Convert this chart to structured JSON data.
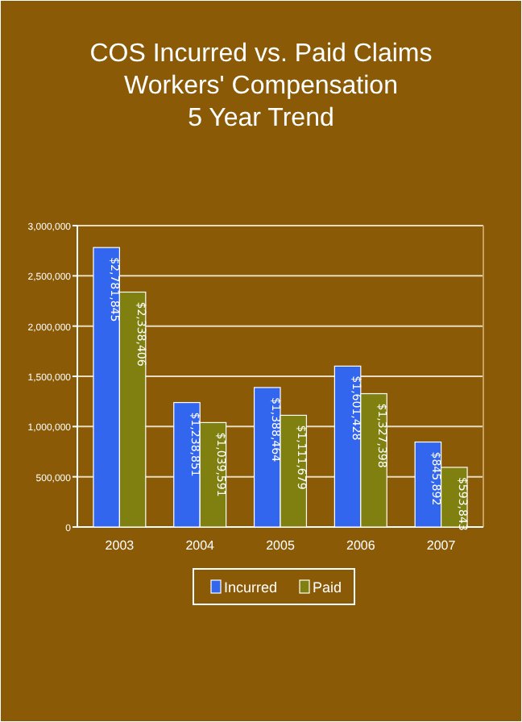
{
  "chart_data": {
    "type": "bar",
    "title": "COS Incurred vs. Paid Claims\nWorkers' Compensation\n5 Year Trend",
    "categories": [
      "2003",
      "2004",
      "2005",
      "2006",
      "2007"
    ],
    "series": [
      {
        "name": "Incurred",
        "color": "#3366ee",
        "values": [
          2781845,
          1238851,
          1388464,
          1601428,
          845892
        ],
        "value_labels": [
          "$2,781,845",
          "$1,238,851",
          "$1,388,464",
          "$1,601,428",
          "$845,892"
        ]
      },
      {
        "name": "Paid",
        "color": "#808010",
        "values": [
          2338406,
          1039591,
          1111679,
          1327398,
          593843
        ],
        "value_labels": [
          "$2,338,406",
          "$1,039,591",
          "$1,111,679",
          "$1,327,398",
          "$593,843"
        ]
      }
    ],
    "ylim": [
      0,
      3000000
    ],
    "yticks": [
      {
        "value": 0,
        "label": "0"
      },
      {
        "value": 500000,
        "label": "500,000"
      },
      {
        "value": 1000000,
        "label": "1,000,000"
      },
      {
        "value": 1500000,
        "label": "1,500,000"
      },
      {
        "value": 2000000,
        "label": "2,000,000"
      },
      {
        "value": 2500000,
        "label": "2,500,000"
      },
      {
        "value": 3000000,
        "label": "3,000,000"
      }
    ],
    "grid": "y",
    "legend": "bottom"
  }
}
